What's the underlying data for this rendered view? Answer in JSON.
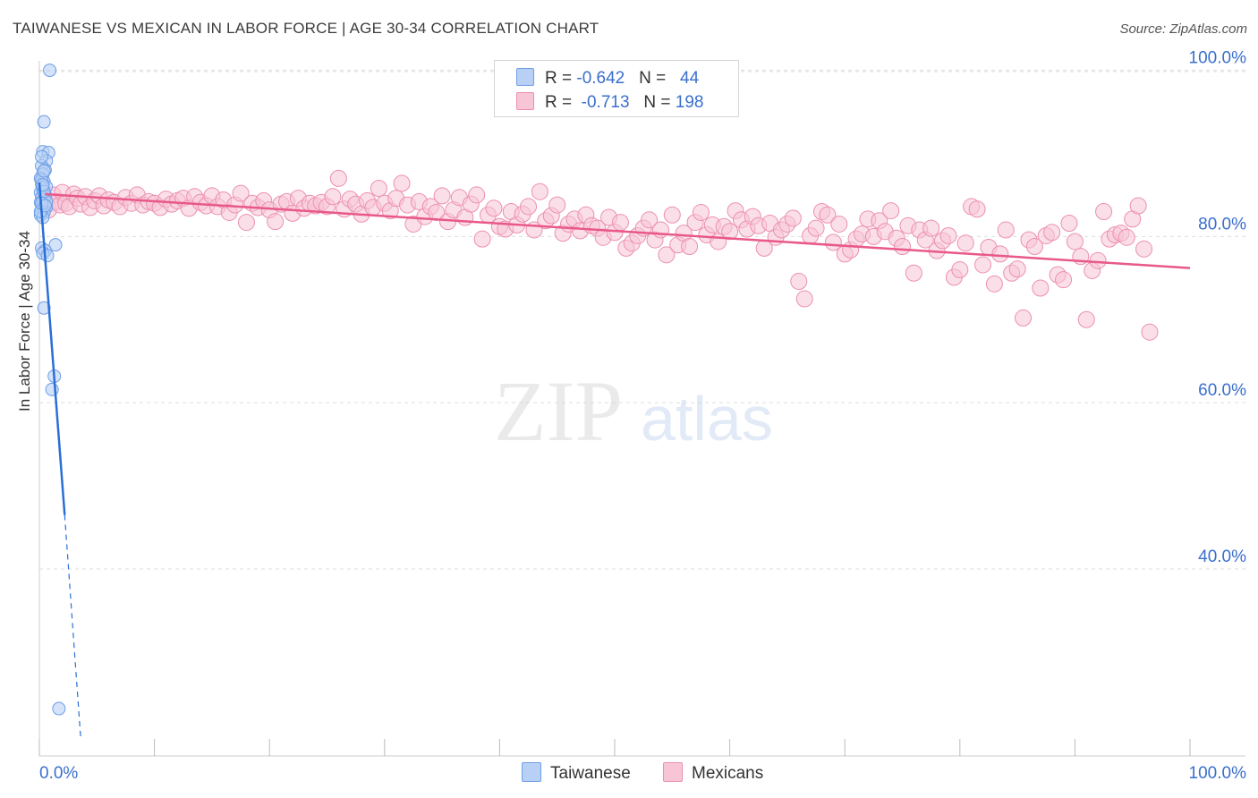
{
  "header": {
    "title": "TAIWANESE VS MEXICAN IN LABOR FORCE | AGE 30-34 CORRELATION CHART",
    "source": "Source: ZipAtlas.com"
  },
  "legend": {
    "rows": [
      {
        "r_label": "R = ",
        "r_value": "-0.642",
        "n_label": "N = ",
        "n_value": "44"
      },
      {
        "r_label": "R = ",
        "r_value": "-0.713",
        "n_label": "N = ",
        "n_value": "198"
      }
    ]
  },
  "bottom_legend": [
    "Taiwanese",
    "Mexicans"
  ],
  "watermark": {
    "zip": "ZIP",
    "atlas": "atlas"
  },
  "colors": {
    "taiwanese_fill": "#b8d0f5",
    "taiwanese_stroke": "#6d9ee6",
    "taiwanese_line": "#2a6fd6",
    "mexican_fill": "#f7c5d6",
    "mexican_stroke": "#ec8fb0",
    "mexican_line": "#e8588a",
    "tick_label": "#3a6fcc",
    "grid": "#dddddd"
  },
  "chart_data": {
    "type": "scatter",
    "title": "TAIWANESE VS MEXICAN IN LABOR FORCE | AGE 30-34 CORRELATION CHART",
    "xlabel": "",
    "ylabel": "In Labor Force | Age 30-34",
    "xlim": [
      0,
      100
    ],
    "ylim": [
      17.5,
      102
    ],
    "x_tick_labels": [
      "0.0%",
      "100.0%"
    ],
    "y_ticks": [
      40,
      60,
      80,
      100
    ],
    "y_tick_labels": [
      "40.0%",
      "60.0%",
      "80.0%",
      "100.0%"
    ],
    "grid": true,
    "series": [
      {
        "name": "Taiwanese",
        "stats": {
          "R": -0.642,
          "N": 44
        },
        "trend": {
          "x0": 0,
          "y0": 86.5,
          "x1": 2.2,
          "y1": 46.5,
          "dash_to_x": 3.6,
          "dash_to_y": 19.5
        },
        "points": [
          [
            0.9,
            100.0
          ],
          [
            0.4,
            93.8
          ],
          [
            0.3,
            90.2
          ],
          [
            0.8,
            90.1
          ],
          [
            0.6,
            89.1
          ],
          [
            0.2,
            88.5
          ],
          [
            0.5,
            88.0
          ],
          [
            0.3,
            87.5
          ],
          [
            0.1,
            87.0
          ],
          [
            0.4,
            86.6
          ],
          [
            0.2,
            86.3
          ],
          [
            0.6,
            86.0
          ],
          [
            0.3,
            85.6
          ],
          [
            0.1,
            85.3
          ],
          [
            0.5,
            85.0
          ],
          [
            0.2,
            84.7
          ],
          [
            0.4,
            84.4
          ],
          [
            0.1,
            84.1
          ],
          [
            0.3,
            83.8
          ],
          [
            0.6,
            83.5
          ],
          [
            0.2,
            83.2
          ],
          [
            0.4,
            82.9
          ],
          [
            0.1,
            82.6
          ],
          [
            0.3,
            82.3
          ],
          [
            1.4,
            79.0
          ],
          [
            0.2,
            78.6
          ],
          [
            0.5,
            78.3
          ],
          [
            0.3,
            78.0
          ],
          [
            0.7,
            77.7
          ],
          [
            0.4,
            71.4
          ],
          [
            1.3,
            63.2
          ],
          [
            1.1,
            61.6
          ],
          [
            1.7,
            23.2
          ],
          [
            0.2,
            86.8
          ],
          [
            0.5,
            84.9
          ],
          [
            0.3,
            85.9
          ],
          [
            0.6,
            84.2
          ],
          [
            0.1,
            83.0
          ],
          [
            0.4,
            85.4
          ],
          [
            0.2,
            84.0
          ],
          [
            0.5,
            83.7
          ],
          [
            0.3,
            86.2
          ],
          [
            0.2,
            89.6
          ],
          [
            0.4,
            87.9
          ]
        ]
      },
      {
        "name": "Mexicans",
        "stats": {
          "R": -0.713,
          "N": 198
        },
        "trend": {
          "x0": 0.5,
          "y0": 85.1,
          "x1": 100,
          "y1": 76.2
        },
        "points": [
          [
            0.5,
            84.5
          ],
          [
            0.8,
            83.2
          ],
          [
            1.2,
            85.0
          ],
          [
            1.5,
            84.2
          ],
          [
            1.8,
            83.8
          ],
          [
            2.0,
            85.3
          ],
          [
            2.3,
            84.0
          ],
          [
            2.6,
            83.6
          ],
          [
            3.0,
            85.1
          ],
          [
            3.3,
            84.6
          ],
          [
            3.6,
            83.9
          ],
          [
            4.0,
            84.8
          ],
          [
            4.4,
            83.5
          ],
          [
            4.8,
            84.3
          ],
          [
            5.2,
            84.9
          ],
          [
            5.6,
            83.7
          ],
          [
            6.0,
            84.4
          ],
          [
            6.5,
            84.1
          ],
          [
            7.0,
            83.6
          ],
          [
            7.5,
            84.7
          ],
          [
            8.0,
            84.0
          ],
          [
            8.5,
            85.0
          ],
          [
            9.0,
            83.8
          ],
          [
            9.5,
            84.2
          ],
          [
            10.0,
            84.0
          ],
          [
            10.5,
            83.5
          ],
          [
            11.0,
            84.5
          ],
          [
            11.5,
            83.9
          ],
          [
            12.0,
            84.3
          ],
          [
            12.5,
            84.6
          ],
          [
            13.0,
            83.4
          ],
          [
            13.5,
            84.8
          ],
          [
            14.0,
            84.1
          ],
          [
            14.5,
            83.7
          ],
          [
            15.0,
            84.9
          ],
          [
            15.5,
            83.6
          ],
          [
            16.0,
            84.4
          ],
          [
            16.5,
            82.9
          ],
          [
            17.0,
            83.8
          ],
          [
            17.5,
            85.2
          ],
          [
            18.0,
            81.7
          ],
          [
            18.5,
            84.0
          ],
          [
            19.0,
            83.5
          ],
          [
            19.5,
            84.3
          ],
          [
            20.0,
            83.2
          ],
          [
            20.5,
            81.8
          ],
          [
            21.0,
            83.9
          ],
          [
            21.5,
            84.2
          ],
          [
            22.0,
            82.8
          ],
          [
            22.5,
            84.6
          ],
          [
            23.0,
            83.4
          ],
          [
            23.5,
            84.0
          ],
          [
            24.0,
            83.7
          ],
          [
            24.5,
            84.1
          ],
          [
            25.0,
            83.6
          ],
          [
            25.5,
            84.8
          ],
          [
            26.0,
            87.0
          ],
          [
            26.5,
            83.3
          ],
          [
            27.0,
            84.5
          ],
          [
            27.5,
            83.9
          ],
          [
            28.0,
            82.7
          ],
          [
            28.5,
            84.3
          ],
          [
            29.0,
            83.5
          ],
          [
            29.5,
            85.8
          ],
          [
            30.0,
            84.0
          ],
          [
            30.5,
            83.1
          ],
          [
            31.0,
            84.6
          ],
          [
            31.5,
            86.4
          ],
          [
            32.0,
            83.8
          ],
          [
            32.5,
            81.5
          ],
          [
            33.0,
            84.2
          ],
          [
            33.5,
            82.4
          ],
          [
            34.0,
            83.6
          ],
          [
            34.5,
            82.9
          ],
          [
            35.0,
            84.9
          ],
          [
            35.5,
            81.8
          ],
          [
            36.0,
            83.2
          ],
          [
            36.5,
            84.7
          ],
          [
            37.0,
            82.3
          ],
          [
            37.5,
            83.9
          ],
          [
            38.0,
            85.0
          ],
          [
            38.5,
            79.7
          ],
          [
            39.0,
            82.6
          ],
          [
            39.5,
            83.4
          ],
          [
            40.0,
            81.2
          ],
          [
            40.5,
            80.9
          ],
          [
            41.0,
            83.0
          ],
          [
            41.5,
            81.4
          ],
          [
            42.0,
            82.7
          ],
          [
            42.5,
            83.6
          ],
          [
            43.0,
            80.8
          ],
          [
            43.5,
            85.4
          ],
          [
            44.0,
            81.9
          ],
          [
            44.5,
            82.5
          ],
          [
            45.0,
            83.8
          ],
          [
            45.5,
            80.4
          ],
          [
            46.0,
            81.5
          ],
          [
            46.5,
            82.1
          ],
          [
            47.0,
            80.7
          ],
          [
            47.5,
            82.6
          ],
          [
            48.0,
            81.3
          ],
          [
            48.5,
            81.0
          ],
          [
            49.0,
            79.9
          ],
          [
            49.5,
            82.3
          ],
          [
            50.0,
            80.5
          ],
          [
            50.5,
            81.7
          ],
          [
            51.0,
            78.6
          ],
          [
            51.5,
            79.2
          ],
          [
            52.0,
            80.1
          ],
          [
            52.5,
            81.0
          ],
          [
            53.0,
            82.0
          ],
          [
            53.5,
            79.6
          ],
          [
            54.0,
            80.8
          ],
          [
            54.5,
            77.8
          ],
          [
            55.0,
            82.6
          ],
          [
            55.5,
            79.0
          ],
          [
            56.0,
            80.4
          ],
          [
            56.5,
            78.8
          ],
          [
            57.0,
            81.7
          ],
          [
            57.5,
            82.9
          ],
          [
            58.0,
            80.2
          ],
          [
            58.5,
            81.4
          ],
          [
            59.0,
            79.4
          ],
          [
            59.5,
            81.2
          ],
          [
            60.0,
            80.6
          ],
          [
            60.5,
            83.1
          ],
          [
            61.0,
            82.0
          ],
          [
            61.5,
            80.9
          ],
          [
            62.0,
            82.4
          ],
          [
            62.5,
            81.3
          ],
          [
            63.0,
            78.6
          ],
          [
            63.5,
            81.6
          ],
          [
            64.0,
            79.9
          ],
          [
            64.5,
            80.8
          ],
          [
            65.0,
            81.5
          ],
          [
            65.5,
            82.2
          ],
          [
            66.0,
            74.6
          ],
          [
            66.5,
            72.5
          ],
          [
            67.0,
            80.1
          ],
          [
            67.5,
            81.0
          ],
          [
            68.0,
            83.0
          ],
          [
            68.5,
            82.6
          ],
          [
            69.0,
            79.3
          ],
          [
            69.5,
            81.5
          ],
          [
            70.0,
            77.9
          ],
          [
            70.5,
            78.4
          ],
          [
            71.0,
            79.7
          ],
          [
            71.5,
            80.3
          ],
          [
            72.0,
            82.1
          ],
          [
            72.5,
            80.0
          ],
          [
            73.0,
            81.9
          ],
          [
            73.5,
            80.6
          ],
          [
            74.0,
            83.1
          ],
          [
            74.5,
            79.8
          ],
          [
            75.0,
            78.8
          ],
          [
            75.5,
            81.3
          ],
          [
            76.0,
            75.6
          ],
          [
            76.5,
            80.8
          ],
          [
            77.0,
            79.6
          ],
          [
            77.5,
            81.0
          ],
          [
            78.0,
            78.3
          ],
          [
            78.5,
            79.5
          ],
          [
            79.0,
            80.1
          ],
          [
            79.5,
            75.1
          ],
          [
            80.0,
            76.0
          ],
          [
            80.5,
            79.2
          ],
          [
            81.0,
            83.6
          ],
          [
            81.5,
            83.3
          ],
          [
            82.0,
            76.6
          ],
          [
            82.5,
            78.7
          ],
          [
            83.0,
            74.3
          ],
          [
            83.5,
            77.9
          ],
          [
            84.0,
            80.8
          ],
          [
            84.5,
            75.6
          ],
          [
            85.0,
            76.1
          ],
          [
            85.5,
            70.2
          ],
          [
            86.0,
            79.6
          ],
          [
            86.5,
            78.8
          ],
          [
            87.0,
            73.8
          ],
          [
            87.5,
            80.1
          ],
          [
            88.0,
            80.5
          ],
          [
            88.5,
            75.4
          ],
          [
            89.0,
            74.8
          ],
          [
            89.5,
            81.6
          ],
          [
            90.0,
            79.4
          ],
          [
            90.5,
            77.6
          ],
          [
            91.0,
            70.0
          ],
          [
            91.5,
            75.9
          ],
          [
            92.0,
            77.1
          ],
          [
            92.5,
            83.0
          ],
          [
            93.0,
            79.7
          ],
          [
            93.5,
            80.2
          ],
          [
            94.0,
            80.4
          ],
          [
            94.5,
            79.9
          ],
          [
            95.0,
            82.1
          ],
          [
            95.5,
            83.7
          ],
          [
            96.0,
            78.5
          ],
          [
            96.5,
            68.5
          ]
        ]
      }
    ]
  }
}
